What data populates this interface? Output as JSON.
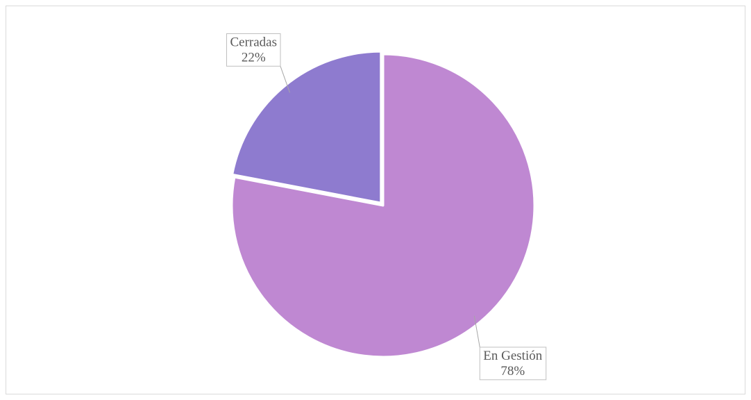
{
  "chart_data": {
    "type": "pie",
    "categories": [
      "En Gestión",
      "Cerradas"
    ],
    "values": [
      78,
      22
    ],
    "value_labels": [
      "78%",
      "22%"
    ],
    "colors": [
      "#bf88d2",
      "#8e7bcf"
    ]
  }
}
